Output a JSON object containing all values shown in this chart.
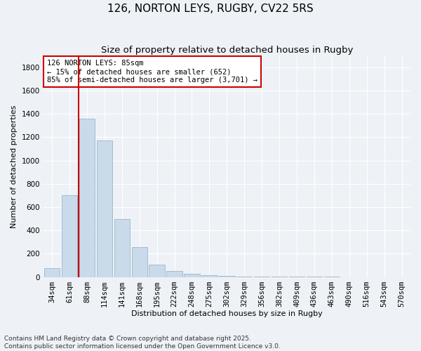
{
  "title": "126, NORTON LEYS, RUGBY, CV22 5RS",
  "subtitle": "Size of property relative to detached houses in Rugby",
  "xlabel": "Distribution of detached houses by size in Rugby",
  "ylabel": "Number of detached properties",
  "categories": [
    "34sqm",
    "61sqm",
    "88sqm",
    "114sqm",
    "141sqm",
    "168sqm",
    "195sqm",
    "222sqm",
    "248sqm",
    "275sqm",
    "302sqm",
    "329sqm",
    "356sqm",
    "382sqm",
    "409sqm",
    "436sqm",
    "463sqm",
    "490sqm",
    "516sqm",
    "543sqm",
    "570sqm"
  ],
  "values": [
    75,
    700,
    1360,
    1175,
    500,
    255,
    108,
    50,
    30,
    18,
    8,
    5,
    3,
    2,
    2,
    1,
    1,
    0,
    0,
    0,
    0
  ],
  "bar_color": "#c9daea",
  "bar_edge_color": "#9ab8cc",
  "vline_x": 1.5,
  "vline_color": "#cc0000",
  "annotation_box_text": "126 NORTON LEYS: 85sqm\n← 15% of detached houses are smaller (652)\n85% of semi-detached houses are larger (3,701) →",
  "annotation_box_facecolor": "white",
  "annotation_box_edgecolor": "#cc0000",
  "ylim": [
    0,
    1900
  ],
  "yticks": [
    0,
    200,
    400,
    600,
    800,
    1000,
    1200,
    1400,
    1600,
    1800
  ],
  "footnote1": "Contains HM Land Registry data © Crown copyright and database right 2025.",
  "footnote2": "Contains public sector information licensed under the Open Government Licence v3.0.",
  "background_color": "#eef2f7",
  "grid_color": "#ffffff",
  "title_fontsize": 11,
  "subtitle_fontsize": 9.5,
  "axis_label_fontsize": 8,
  "tick_fontsize": 7.5,
  "annotation_fontsize": 7.5,
  "footnote_fontsize": 6.5
}
